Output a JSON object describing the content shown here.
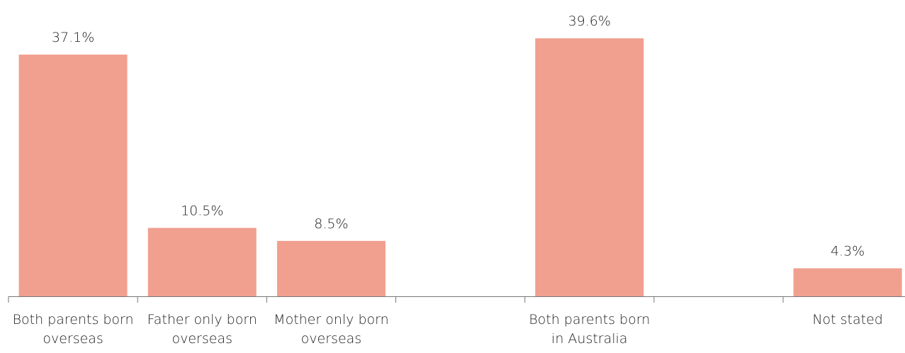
{
  "chart_data": {
    "type": "bar",
    "categories": [
      "Both parents born overseas",
      "Father only born overseas",
      "Mother only born overseas",
      null,
      "Both parents born in Australia",
      null,
      "Not stated"
    ],
    "values": [
      37.1,
      10.5,
      8.5,
      null,
      39.6,
      null,
      4.3
    ],
    "value_labels": [
      "37.1%",
      "10.5%",
      "8.5%",
      null,
      "39.6%",
      null,
      "4.3%"
    ],
    "color": "#f19f8f"
  }
}
